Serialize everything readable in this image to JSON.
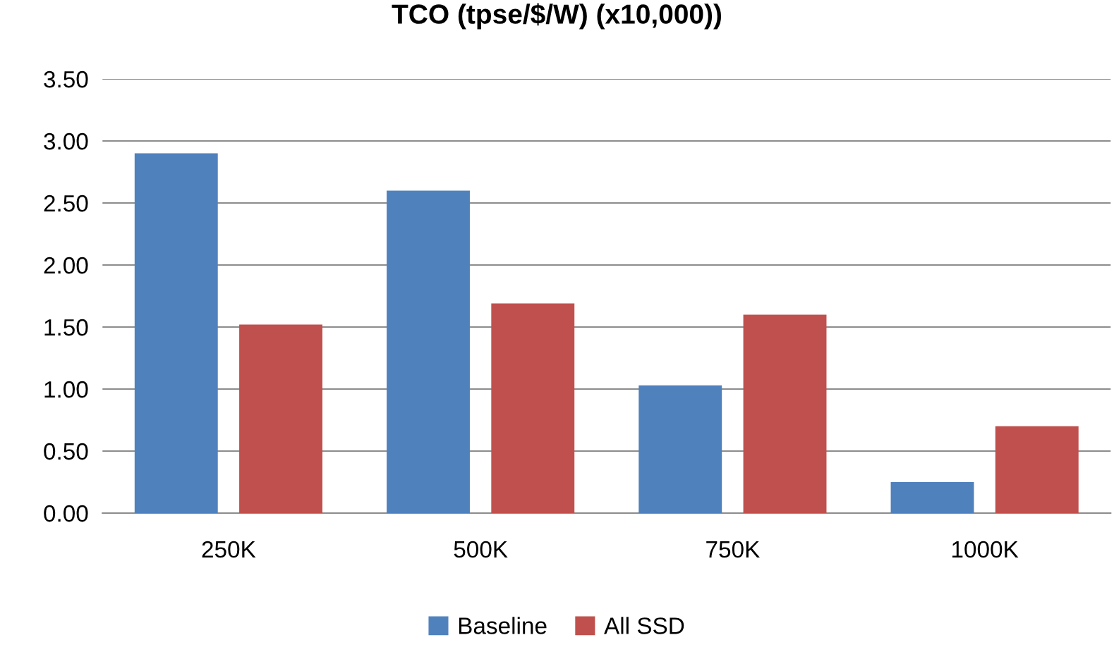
{
  "chart_data": {
    "type": "bar",
    "title": "TCO (tpse/$/W) (x10,000))",
    "categories": [
      "250K",
      "500K",
      "750K",
      "1000K"
    ],
    "series": [
      {
        "name": "Baseline",
        "color": "#4f81bd",
        "values": [
          2.9,
          2.6,
          1.03,
          0.25
        ]
      },
      {
        "name": "All SSD",
        "color": "#c0504d",
        "values": [
          1.52,
          1.69,
          1.6,
          0.7
        ]
      }
    ],
    "ylim": [
      0,
      3.5
    ],
    "yticks": [
      {
        "value": 0,
        "label": "0.00"
      },
      {
        "value": 0.5,
        "label": "0.50"
      },
      {
        "value": 1,
        "label": "1.00"
      },
      {
        "value": 1.5,
        "label": "1.50"
      },
      {
        "value": 2,
        "label": "2.00"
      },
      {
        "value": 2.5,
        "label": "2.50"
      },
      {
        "value": 3,
        "label": "3.00"
      },
      {
        "value": 3.5,
        "label": "3.50"
      }
    ],
    "grid": "y",
    "legend": "bottom"
  }
}
